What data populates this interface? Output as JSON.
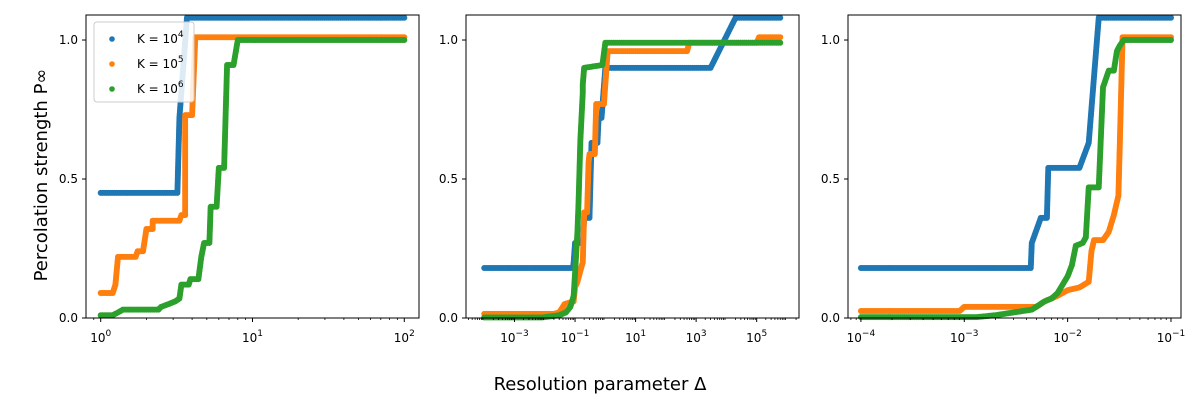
{
  "figure": {
    "ylabel": "Percolation strength P∞",
    "xlabel": "Resolution parameter Δ"
  },
  "colors": {
    "K=10^4": "#1f77b4",
    "K=10^5": "#ff7f0e",
    "K=10^6": "#2ca02c"
  },
  "legend": {
    "position": "upper-left of first panel",
    "entries": [
      {
        "label": "K = 10",
        "exp": "4",
        "color": "#1f77b4"
      },
      {
        "label": "K = 10",
        "exp": "5",
        "color": "#ff7f0e"
      },
      {
        "label": "K = 10",
        "exp": "6",
        "color": "#2ca02c"
      }
    ]
  },
  "chart_data": [
    {
      "type": "scatter",
      "xscale": "log",
      "xlim": [
        0.8,
        125
      ],
      "ylim": [
        0,
        1.09
      ],
      "xticks": [
        {
          "v": 1,
          "exp": "0"
        },
        {
          "v": 10,
          "exp": "1"
        },
        {
          "v": 100,
          "exp": "2"
        }
      ],
      "yticks": [
        {
          "v": 0,
          "t": "0.0"
        },
        {
          "v": 0.5,
          "t": "0.5"
        },
        {
          "v": 1.0,
          "t": "1.0"
        }
      ],
      "series": [
        {
          "name": "K = 10^4",
          "color": "#1f77b4",
          "points": [
            [
              1.0,
              0.45
            ],
            [
              3.2,
              0.45
            ],
            [
              3.3,
              0.72
            ],
            [
              3.7,
              1.08
            ],
            [
              100,
              1.08
            ]
          ]
        },
        {
          "name": "K = 10^5",
          "color": "#ff7f0e",
          "points": [
            [
              1.0,
              0.09
            ],
            [
              1.2,
              0.09
            ],
            [
              1.25,
              0.12
            ],
            [
              1.3,
              0.22
            ],
            [
              1.7,
              0.22
            ],
            [
              1.75,
              0.24
            ],
            [
              1.9,
              0.24
            ],
            [
              2.0,
              0.32
            ],
            [
              2.2,
              0.32
            ],
            [
              2.2,
              0.35
            ],
            [
              3.3,
              0.35
            ],
            [
              3.4,
              0.37
            ],
            [
              3.6,
              0.37
            ],
            [
              3.6,
              0.73
            ],
            [
              4.0,
              0.73
            ],
            [
              4.2,
              1.01
            ],
            [
              100,
              1.01
            ]
          ]
        },
        {
          "name": "K = 10^6",
          "color": "#2ca02c",
          "points": [
            [
              1.0,
              0.01
            ],
            [
              1.2,
              0.01
            ],
            [
              1.3,
              0.02
            ],
            [
              1.4,
              0.03
            ],
            [
              2.4,
              0.03
            ],
            [
              2.5,
              0.04
            ],
            [
              2.8,
              0.05
            ],
            [
              3.1,
              0.06
            ],
            [
              3.3,
              0.07
            ],
            [
              3.4,
              0.12
            ],
            [
              3.8,
              0.12
            ],
            [
              3.9,
              0.14
            ],
            [
              4.4,
              0.14
            ],
            [
              4.6,
              0.22
            ],
            [
              4.8,
              0.27
            ],
            [
              5.2,
              0.27
            ],
            [
              5.3,
              0.4
            ],
            [
              5.8,
              0.4
            ],
            [
              6.0,
              0.54
            ],
            [
              6.5,
              0.54
            ],
            [
              6.8,
              0.91
            ],
            [
              7.5,
              0.91
            ],
            [
              8.0,
              1.0
            ],
            [
              100,
              1.0
            ]
          ]
        }
      ]
    },
    {
      "type": "scatter",
      "xscale": "log",
      "xlim": [
        2.5e-05,
        2500000
      ],
      "ylim": [
        0,
        1.09
      ],
      "xticks": [
        {
          "v": 0.001,
          "exp": "−3"
        },
        {
          "v": 0.1,
          "exp": "−1"
        },
        {
          "v": 10,
          "exp": "1"
        },
        {
          "v": 1000,
          "exp": "3"
        },
        {
          "v": 100000,
          "exp": "5"
        }
      ],
      "yticks": [
        {
          "v": 0,
          "t": "0.0"
        },
        {
          "v": 0.5,
          "t": "0.5"
        },
        {
          "v": 1.0,
          "t": "1.0"
        }
      ],
      "series": [
        {
          "name": "K = 10^4",
          "color": "#1f77b4",
          "points": [
            [
              0.0001,
              0.18
            ],
            [
              0.085,
              0.18
            ],
            [
              0.09,
              0.2
            ],
            [
              0.1,
              0.27
            ],
            [
              0.18,
              0.27
            ],
            [
              0.2,
              0.36
            ],
            [
              0.3,
              0.36
            ],
            [
              0.35,
              0.63
            ],
            [
              0.55,
              0.63
            ],
            [
              0.6,
              0.72
            ],
            [
              0.75,
              0.72
            ],
            [
              1.0,
              0.9
            ],
            [
              3000,
              0.9
            ],
            [
              20000,
              1.08
            ],
            [
              600000,
              1.08
            ]
          ]
        },
        {
          "name": "K = 10^5",
          "color": "#ff7f0e",
          "points": [
            [
              0.0001,
              0.015
            ],
            [
              0.02,
              0.015
            ],
            [
              0.03,
              0.02
            ],
            [
              0.045,
              0.05
            ],
            [
              0.09,
              0.06
            ],
            [
              0.1,
              0.11
            ],
            [
              0.12,
              0.13
            ],
            [
              0.15,
              0.17
            ],
            [
              0.18,
              0.2
            ],
            [
              0.2,
              0.38
            ],
            [
              0.25,
              0.38
            ],
            [
              0.28,
              0.56
            ],
            [
              0.3,
              0.59
            ],
            [
              0.45,
              0.59
            ],
            [
              0.5,
              0.77
            ],
            [
              0.9,
              0.77
            ],
            [
              1.2,
              0.96
            ],
            [
              500,
              0.96
            ],
            [
              600,
              0.99
            ],
            [
              100000,
              0.99
            ],
            [
              120000,
              1.01
            ],
            [
              600000,
              1.01
            ]
          ]
        },
        {
          "name": "K = 10^6",
          "color": "#2ca02c",
          "points": [
            [
              0.0001,
              0.002
            ],
            [
              0.008,
              0.002
            ],
            [
              0.03,
              0.01
            ],
            [
              0.05,
              0.02
            ],
            [
              0.07,
              0.04
            ],
            [
              0.08,
              0.06
            ],
            [
              0.09,
              0.08
            ],
            [
              0.1,
              0.16
            ],
            [
              0.12,
              0.31
            ],
            [
              0.13,
              0.41
            ],
            [
              0.15,
              0.64
            ],
            [
              0.18,
              0.81
            ],
            [
              0.18,
              0.84
            ],
            [
              0.2,
              0.9
            ],
            [
              0.8,
              0.91
            ],
            [
              1.0,
              0.99
            ],
            [
              600000,
              0.99
            ]
          ]
        }
      ]
    },
    {
      "type": "scatter",
      "xscale": "log",
      "xlim": [
        7.5e-05,
        0.125
      ],
      "ylim": [
        0,
        1.09
      ],
      "xticks": [
        {
          "v": 0.0001,
          "exp": "−4"
        },
        {
          "v": 0.001,
          "exp": "−3"
        },
        {
          "v": 0.01,
          "exp": "−2"
        },
        {
          "v": 0.1,
          "exp": "−1"
        }
      ],
      "yticks": [
        {
          "v": 0,
          "t": "0.0"
        },
        {
          "v": 0.5,
          "t": "0.5"
        },
        {
          "v": 1.0,
          "t": "1.0"
        }
      ],
      "series": [
        {
          "name": "K = 10^4",
          "color": "#1f77b4",
          "points": [
            [
              0.0001,
              0.18
            ],
            [
              0.0044,
              0.18
            ],
            [
              0.0045,
              0.27
            ],
            [
              0.0055,
              0.36
            ],
            [
              0.0063,
              0.36
            ],
            [
              0.0065,
              0.54
            ],
            [
              0.013,
              0.54
            ],
            [
              0.016,
              0.63
            ],
            [
              0.02,
              1.08
            ],
            [
              0.1,
              1.08
            ]
          ]
        },
        {
          "name": "K = 10^5",
          "color": "#ff7f0e",
          "points": [
            [
              0.0001,
              0.025
            ],
            [
              0.0009,
              0.025
            ],
            [
              0.001,
              0.04
            ],
            [
              0.005,
              0.04
            ],
            [
              0.006,
              0.06
            ],
            [
              0.008,
              0.08
            ],
            [
              0.01,
              0.1
            ],
            [
              0.013,
              0.11
            ],
            [
              0.016,
              0.13
            ],
            [
              0.017,
              0.24
            ],
            [
              0.018,
              0.28
            ],
            [
              0.022,
              0.28
            ],
            [
              0.025,
              0.31
            ],
            [
              0.028,
              0.37
            ],
            [
              0.031,
              0.44
            ],
            [
              0.032,
              0.63
            ],
            [
              0.034,
              1.01
            ],
            [
              0.1,
              1.01
            ]
          ]
        },
        {
          "name": "K = 10^6",
          "color": "#2ca02c",
          "points": [
            [
              0.0001,
              0.003
            ],
            [
              0.0013,
              0.003
            ],
            [
              0.002,
              0.01
            ],
            [
              0.003,
              0.02
            ],
            [
              0.0045,
              0.03
            ],
            [
              0.006,
              0.06
            ],
            [
              0.007,
              0.07
            ],
            [
              0.008,
              0.09
            ],
            [
              0.01,
              0.15
            ],
            [
              0.011,
              0.19
            ],
            [
              0.012,
              0.26
            ],
            [
              0.014,
              0.27
            ],
            [
              0.015,
              0.29
            ],
            [
              0.016,
              0.47
            ],
            [
              0.02,
              0.47
            ],
            [
              0.022,
              0.83
            ],
            [
              0.025,
              0.89
            ],
            [
              0.028,
              0.89
            ],
            [
              0.03,
              0.96
            ],
            [
              0.032,
              0.98
            ],
            [
              0.035,
              1.0
            ],
            [
              0.1,
              1.0
            ]
          ]
        }
      ]
    }
  ]
}
